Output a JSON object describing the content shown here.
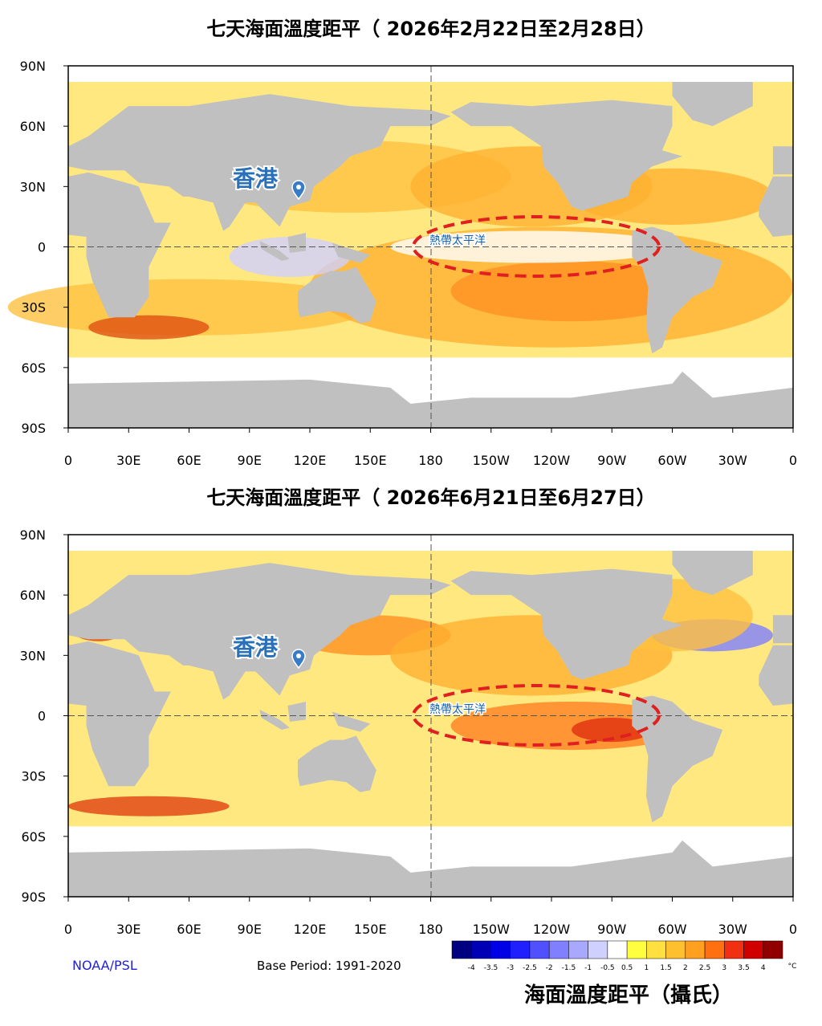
{
  "panels": [
    {
      "title": "七天海面溫度距平（ 2026年2月22日至2月28日）",
      "location_label": "香港",
      "region_label": "熱帶太平洋"
    },
    {
      "title": "七天海面溫度距平（ 2026年6月21日至6月27日）",
      "location_label": "香港",
      "region_label": "熱帶太平洋"
    }
  ],
  "lat_ticks": [
    "90N",
    "60N",
    "30N",
    "0",
    "30S",
    "60S",
    "90S"
  ],
  "lon_ticks": [
    "0",
    "30E",
    "60E",
    "90E",
    "120E",
    "150E",
    "180",
    "150W",
    "120W",
    "90W",
    "60W",
    "30W",
    "0"
  ],
  "source": "NOAA/PSL",
  "base_period": "Base Period: 1991-2020",
  "colorbar": {
    "labels": [
      "-4",
      "-3.5",
      "-3",
      "-2.5",
      "-2",
      "-1.5",
      "-1",
      "-0.5",
      "0.5",
      "1",
      "1.5",
      "2",
      "2.5",
      "3",
      "3.5",
      "4"
    ],
    "colors": [
      "#000080",
      "#0000b4",
      "#0000e6",
      "#2020ff",
      "#5050ff",
      "#8080ff",
      "#a8a8ff",
      "#d0d0ff",
      "#ffffff",
      "#ffff40",
      "#ffe040",
      "#ffc030",
      "#ffa020",
      "#ff7010",
      "#f03010",
      "#d00000",
      "#900000"
    ],
    "unit": "°C",
    "title": "海面溫度距平（攝氏）"
  }
}
